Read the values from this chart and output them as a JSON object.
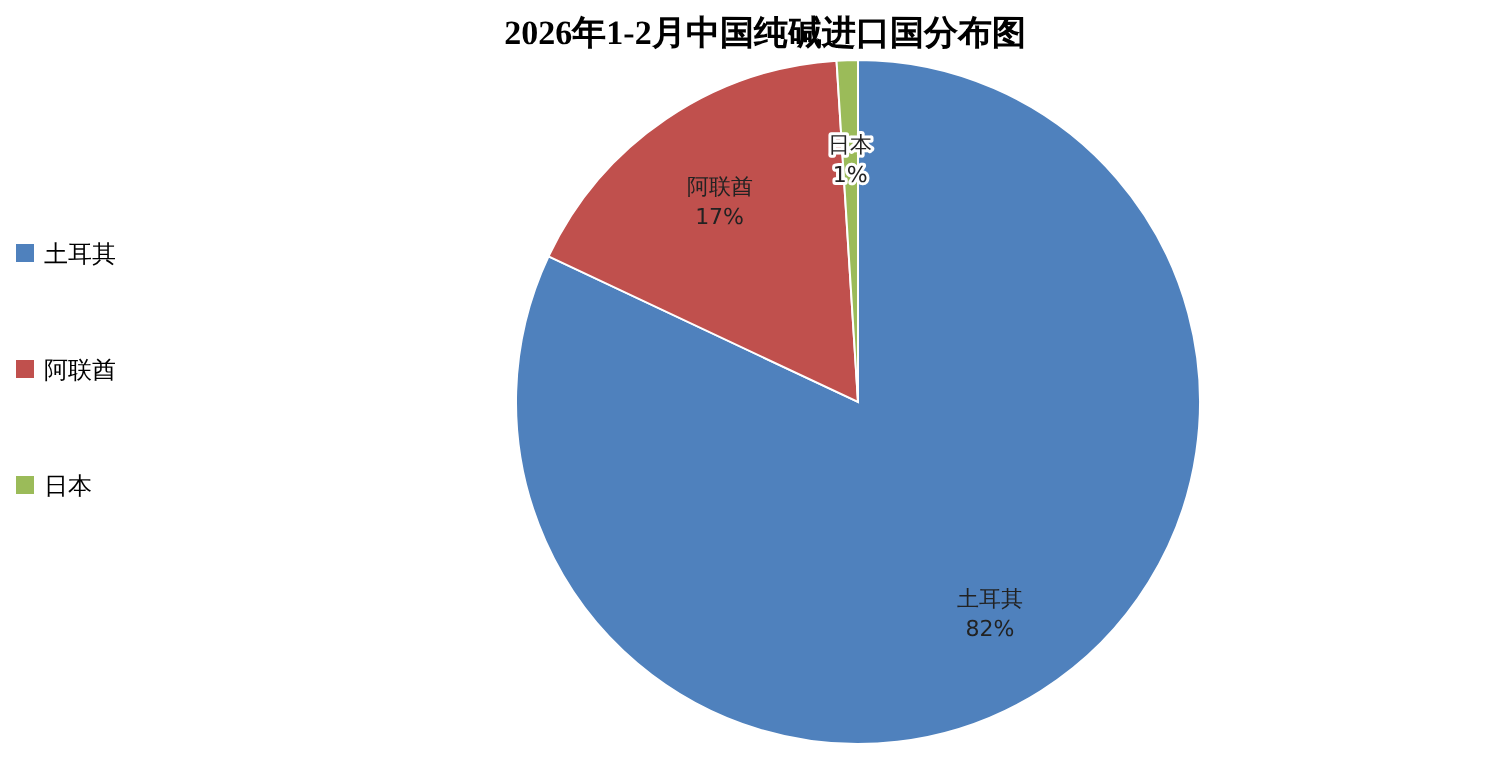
{
  "chart_data": {
    "type": "pie",
    "title": "2026年1-2月中国纯碱进口国分布图",
    "categories": [
      "土耳其",
      "阿联酋",
      "日本"
    ],
    "values": [
      82,
      17,
      1
    ],
    "colors": [
      "#4f81bd",
      "#c0504d",
      "#9bbb59"
    ],
    "value_labels": [
      "82%",
      "17%",
      "1%"
    ],
    "legend": "left"
  }
}
